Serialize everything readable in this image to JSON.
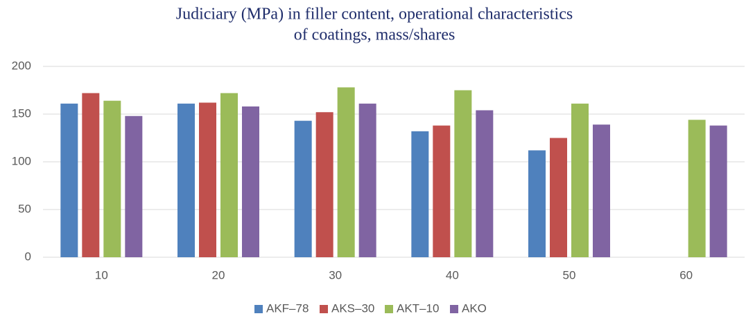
{
  "chart_data": {
    "type": "bar",
    "title": [
      "Judiciary (MPa) in filler content, operational characteristics",
      "of coatings, mass/shares"
    ],
    "categories": [
      "10",
      "20",
      "30",
      "40",
      "50",
      "60"
    ],
    "series": [
      {
        "name": "AKF–78",
        "color": "#4f81bd",
        "values": [
          161,
          161,
          143,
          132,
          112,
          null
        ]
      },
      {
        "name": "AKS–30",
        "color": "#c0504d",
        "values": [
          172,
          162,
          152,
          138,
          125,
          null
        ]
      },
      {
        "name": "AKT–10",
        "color": "#9bbb59",
        "values": [
          164,
          172,
          178,
          175,
          161,
          144
        ]
      },
      {
        "name": "AKO",
        "color": "#8064a2",
        "values": [
          148,
          158,
          161,
          154,
          139,
          138
        ]
      }
    ],
    "ylim": [
      0,
      200
    ],
    "yticks": [
      0,
      50,
      100,
      150,
      200
    ],
    "grid": true,
    "legend": "bottom"
  }
}
